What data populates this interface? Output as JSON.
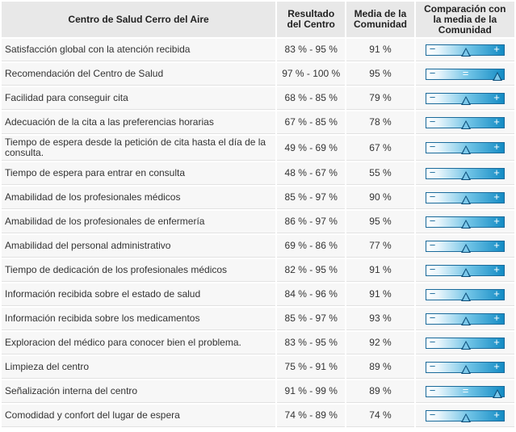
{
  "header": {
    "center": "Centro de Salud Cerro del Aire",
    "result": "Resultado del Centro",
    "mean": "Media de la Comunidad",
    "comparison": "Comparación con la media de la Comunidad"
  },
  "rows": [
    {
      "item": "Satisfacción global con la atención recibida",
      "range": "83 % - 95 %",
      "mean": "91 %",
      "comparison": "similar"
    },
    {
      "item": "Recomendación del Centro de Salud",
      "range": "97 % - 100 %",
      "mean": "95 %",
      "comparison": "higher"
    },
    {
      "item": "Facilidad para conseguir cita",
      "range": "68 % - 85 %",
      "mean": "79 %",
      "comparison": "similar"
    },
    {
      "item": "Adecuación de la cita a las preferencias horarias",
      "range": "67 % - 85 %",
      "mean": "78 %",
      "comparison": "similar"
    },
    {
      "item": "Tiempo de espera desde la petición de cita hasta el día de la consulta.",
      "range": "49 % - 69 %",
      "mean": "67 %",
      "comparison": "similar"
    },
    {
      "item": "Tiempo de espera para entrar en consulta",
      "range": "48 % - 67 %",
      "mean": "55 %",
      "comparison": "similar"
    },
    {
      "item": "Amabilidad de los profesionales médicos",
      "range": "85 % - 97 %",
      "mean": "90 %",
      "comparison": "similar"
    },
    {
      "item": "Amabilidad de los profesionales de enfermería",
      "range": "86 % - 97 %",
      "mean": "95 %",
      "comparison": "similar"
    },
    {
      "item": "Amabilidad del personal administrativo",
      "range": "69 % - 86 %",
      "mean": "77 %",
      "comparison": "similar"
    },
    {
      "item": "Tiempo de dedicación de los profesionales médicos",
      "range": "82 % - 95 %",
      "mean": "91 %",
      "comparison": "similar"
    },
    {
      "item": "Información recibida sobre el estado de salud",
      "range": "84 % - 96 %",
      "mean": "91 %",
      "comparison": "similar"
    },
    {
      "item": "Información recibida sobre los medicamentos",
      "range": "85 % - 97 %",
      "mean": "93 %",
      "comparison": "similar"
    },
    {
      "item": "Exploracion del médico para conocer bien el problema.",
      "range": "83 % - 95 %",
      "mean": "92 %",
      "comparison": "similar"
    },
    {
      "item": "Limpieza del centro",
      "range": "75 % - 91 %",
      "mean": "89 %",
      "comparison": "similar"
    },
    {
      "item": "Señalización interna del centro",
      "range": "91 % - 99 %",
      "mean": "89 %",
      "comparison": "higher"
    },
    {
      "item": "Comodidad y confort del lugar de espera",
      "range": "74 % - 89 %",
      "mean": "74 %",
      "comparison": "similar"
    }
  ],
  "symbols": {
    "minus": "−",
    "plus": "+",
    "equal": "="
  },
  "colors": {
    "bar_start": "#ffffff",
    "bar_end": "#138bc4",
    "marker": "#0d4f7a",
    "border": "#1a6a9a"
  },
  "icons": {
    "similar": "triangle-marker-center-icon",
    "higher": "triangle-marker-right-icon"
  }
}
